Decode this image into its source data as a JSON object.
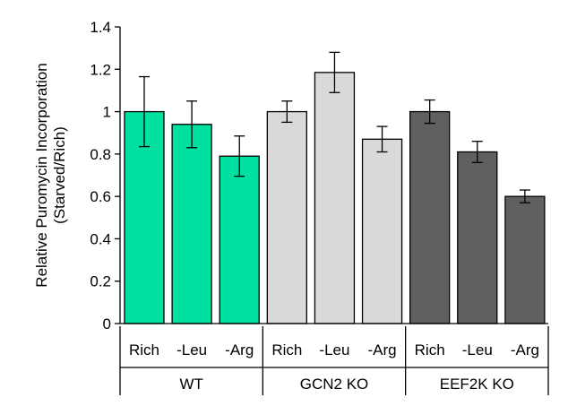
{
  "chart_data": {
    "type": "bar",
    "ylabel_line1": "Relative Puromycin Incorporation",
    "ylabel_line2": "(Starved/Rich)",
    "ylim": [
      0,
      1.4
    ],
    "yticks": [
      0,
      0.2,
      0.4,
      0.6,
      0.8,
      1,
      1.2,
      1.4
    ],
    "ytick_labels": [
      "0",
      "0.2",
      "0.4",
      "0.6",
      "0.8",
      "1",
      "1.2",
      "1.4"
    ],
    "grid": false,
    "groups": [
      {
        "name": "WT",
        "color": "#00e0a0",
        "categories": [
          "Rich",
          "-Leu",
          "-Arg"
        ],
        "values": [
          1.0,
          0.94,
          0.79
        ],
        "errors": [
          0.165,
          0.11,
          0.095
        ]
      },
      {
        "name": "GCN2 KO",
        "color": "#d9d9d9",
        "categories": [
          "Rich",
          "-Leu",
          "-Arg"
        ],
        "values": [
          1.0,
          1.185,
          0.87
        ],
        "errors": [
          0.05,
          0.095,
          0.06
        ]
      },
      {
        "name": "EEF2K KO",
        "color": "#606060",
        "categories": [
          "Rich",
          "-Leu",
          "-Arg"
        ],
        "values": [
          1.0,
          0.81,
          0.6
        ],
        "errors": [
          0.055,
          0.05,
          0.03
        ]
      }
    ]
  }
}
